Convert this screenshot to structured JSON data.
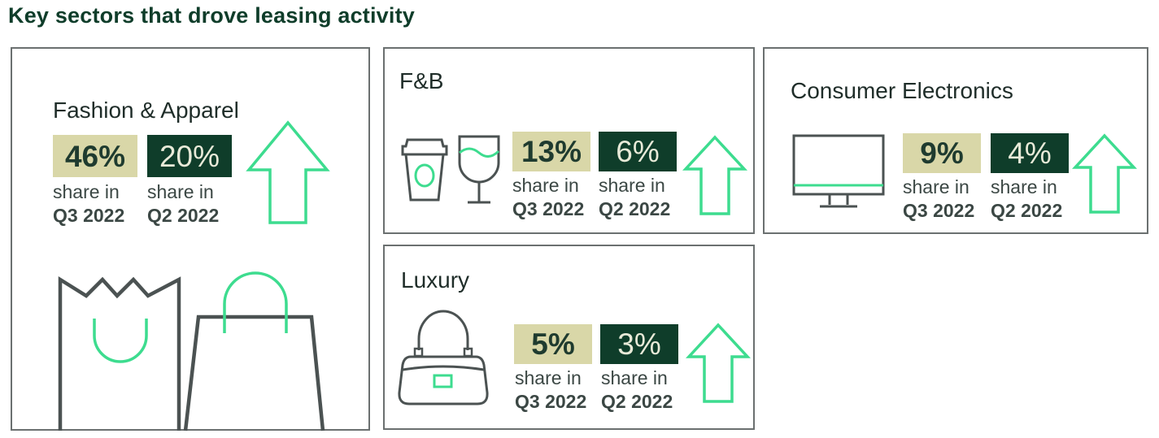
{
  "title": "Key sectors that drove leasing activity",
  "colors": {
    "light_badge": "#d9d7a8",
    "dark_badge": "#0f3d2a",
    "accent": "#3ddc8f",
    "outline": "#6b7070"
  },
  "sectors": [
    {
      "name": "Fashion & Apparel",
      "q3_value": "46%",
      "q3_label": "share in",
      "q3_period": "Q3 2022",
      "q2_value": "20%",
      "q2_label": "share in",
      "q2_period": "Q2 2022",
      "icons": [
        "up-arrow-icon",
        "shopping-bag-icon"
      ]
    },
    {
      "name": "F&B",
      "q3_value": "13%",
      "q3_label": "share in",
      "q3_period": "Q3 2022",
      "q2_value": "6%",
      "q2_label": "share in",
      "q2_period": "Q2 2022",
      "icons": [
        "coffee-cup-icon",
        "wine-glass-icon",
        "up-arrow-icon"
      ]
    },
    {
      "name": "Consumer Electronics",
      "q3_value": "9%",
      "q3_label": "share in",
      "q3_period": "Q3 2022",
      "q2_value": "4%",
      "q2_label": "share in",
      "q2_period": "Q2 2022",
      "icons": [
        "monitor-icon",
        "up-arrow-icon"
      ]
    },
    {
      "name": "Luxury",
      "q3_value": "5%",
      "q3_label": "share in",
      "q3_period": "Q3 2022",
      "q2_value": "3%",
      "q2_label": "share in",
      "q2_period": "Q2 2022",
      "icons": [
        "handbag-icon",
        "up-arrow-icon"
      ]
    }
  ]
}
